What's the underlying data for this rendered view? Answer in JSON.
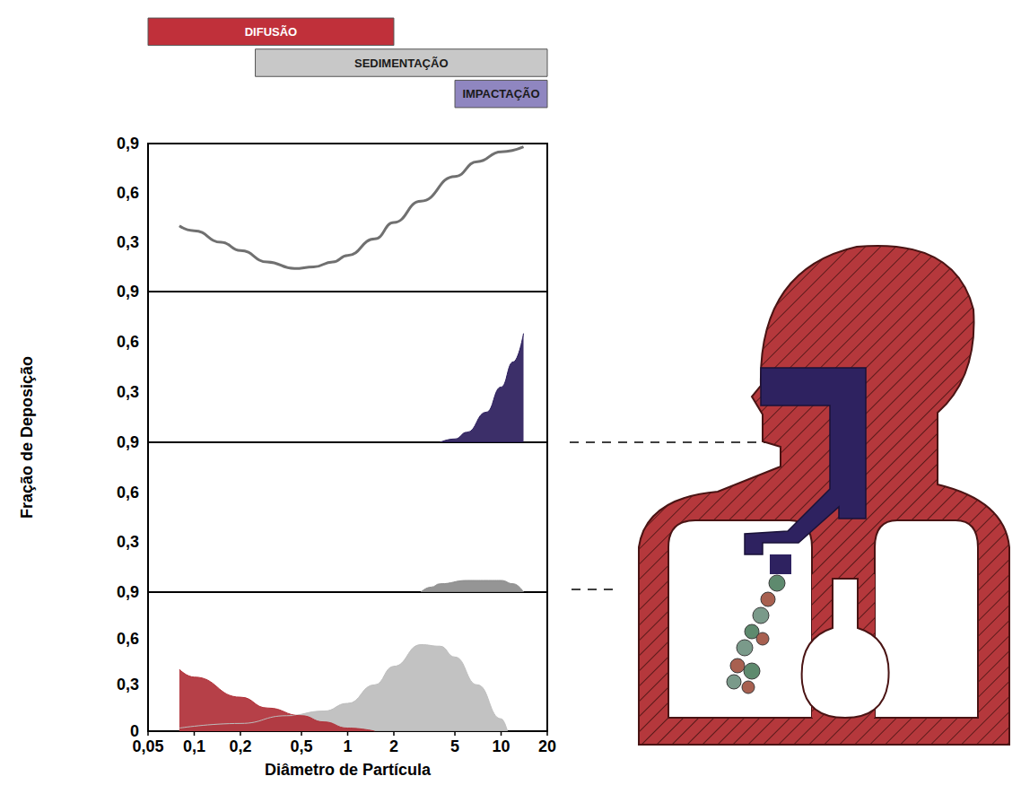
{
  "chart_data": {
    "type": "line",
    "log": "x",
    "grid": false,
    "xlabel": "Diâmetro de Partícula",
    "ylabel": "Fração de Deposição",
    "xlim": [
      0.05,
      20
    ],
    "xticks": [
      {
        "value": 0.05,
        "label": "0,05"
      },
      {
        "value": 0.1,
        "label": "0,1"
      },
      {
        "value": 0.2,
        "label": "0,2"
      },
      {
        "value": 0.5,
        "label": "0,5"
      },
      1,
      2,
      5,
      10,
      20
    ],
    "mechanisms": [
      {
        "name": "DIFUSÃO",
        "color": "#c0303a",
        "range": [
          0.05,
          2
        ]
      },
      {
        "name": "SEDIMENTAÇÃO",
        "color": "#c8c8c8",
        "range": [
          0.25,
          20
        ]
      },
      {
        "name": "IMPACTAÇÃO",
        "color": "#8f86c0",
        "range": [
          5,
          20
        ]
      }
    ],
    "panels": [
      {
        "ylim": [
          0,
          0.9
        ],
        "yticks": [
          {
            "value": 0.3,
            "label": "0,3"
          },
          {
            "value": 0.6,
            "label": "0,6"
          },
          {
            "value": 0.9,
            "label": "0,9"
          }
        ],
        "series": [
          {
            "type": "line",
            "color": "#707070",
            "x": [
              0.08,
              0.1,
              0.15,
              0.2,
              0.3,
              0.45,
              0.6,
              0.8,
              1,
              1.5,
              2,
              3,
              5,
              7,
              10,
              14
            ],
            "values": [
              0.4,
              0.37,
              0.3,
              0.25,
              0.18,
              0.14,
              0.15,
              0.18,
              0.22,
              0.32,
              0.42,
              0.55,
              0.7,
              0.79,
              0.85,
              0.88
            ]
          }
        ]
      },
      {
        "ylim": [
          0,
          0.9
        ],
        "yticks": [
          {
            "value": 0.3,
            "label": "0,3"
          },
          {
            "value": 0.6,
            "label": "0,6"
          },
          {
            "value": 0.9,
            "label": "0,9"
          }
        ],
        "series": [
          {
            "type": "area",
            "color": "#2b1d5c",
            "x": [
              4,
              5,
              6,
              8,
              10,
              12,
              14
            ],
            "values": [
              0,
              0.02,
              0.06,
              0.18,
              0.33,
              0.48,
              0.65
            ]
          }
        ]
      },
      {
        "ylim": [
          0,
          0.9
        ],
        "yticks": [
          {
            "value": 0.3,
            "label": "0,3"
          },
          {
            "value": 0.6,
            "label": "0,6"
          },
          {
            "value": 0.9,
            "label": "0,9"
          }
        ],
        "series": [
          {
            "type": "area",
            "color": "#8c8c8c",
            "x": [
              3,
              3.5,
              4,
              6,
              8,
              10,
              12,
              14
            ],
            "values": [
              0,
              0.03,
              0.05,
              0.07,
              0.07,
              0.07,
              0.05,
              0
            ]
          }
        ]
      },
      {
        "ylim": [
          0,
          0.9
        ],
        "yticks": [
          0,
          {
            "value": 0.3,
            "label": "0,3"
          },
          {
            "value": 0.6,
            "label": "0,6"
          },
          {
            "value": 0.9,
            "label": "0,9"
          }
        ],
        "series": [
          {
            "type": "area",
            "color": "#bdbdbd",
            "x": [
              0.08,
              0.2,
              0.4,
              0.7,
              1,
              1.5,
              2,
              3,
              4,
              5,
              7,
              10,
              11
            ],
            "values": [
              0.02,
              0.05,
              0.1,
              0.13,
              0.18,
              0.3,
              0.42,
              0.56,
              0.55,
              0.48,
              0.3,
              0.08,
              0
            ]
          },
          {
            "type": "area",
            "color": "#b03038",
            "x": [
              0.08,
              0.1,
              0.2,
              0.3,
              0.5,
              0.7,
              1,
              1.5
            ],
            "values": [
              0.4,
              0.35,
              0.22,
              0.15,
              0.1,
              0.06,
              0.02,
              0
            ]
          }
        ]
      }
    ]
  }
}
